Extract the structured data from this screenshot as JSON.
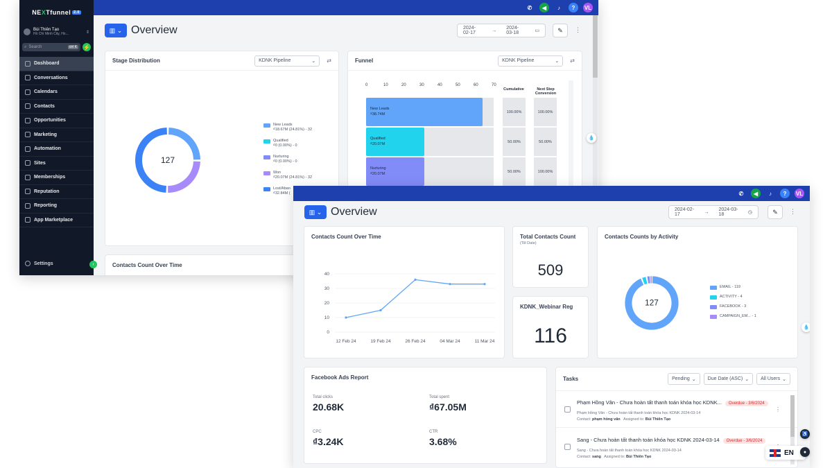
{
  "brand": {
    "name_a": "NE",
    "name_b": "X",
    "name_c": "Tfunnel",
    "badge": "2.0"
  },
  "location": {
    "name": "Bùi Thiên Tạo",
    "city": "Hồ Chí Minh City, Ho..."
  },
  "search": {
    "placeholder": "Search",
    "shortcut": "ctrl K"
  },
  "sidebar": {
    "items": [
      {
        "label": "Dashboard",
        "icon": "dashboard-icon"
      },
      {
        "label": "Conversations",
        "icon": "chat-icon"
      },
      {
        "label": "Calendars",
        "icon": "calendar-icon"
      },
      {
        "label": "Contacts",
        "icon": "contacts-icon"
      },
      {
        "label": "Opportunities",
        "icon": "opportunities-icon"
      },
      {
        "label": "Marketing",
        "icon": "megaphone-icon"
      },
      {
        "label": "Automation",
        "icon": "automation-icon"
      },
      {
        "label": "Sites",
        "icon": "sites-icon"
      },
      {
        "label": "Memberships",
        "icon": "memberships-icon"
      },
      {
        "label": "Reputation",
        "icon": "star-icon"
      },
      {
        "label": "Reporting",
        "icon": "reporting-icon"
      },
      {
        "label": "App Marketplace",
        "icon": "grid-icon"
      }
    ],
    "settings": "Settings"
  },
  "topbar": {
    "user_initials": "VL"
  },
  "page": {
    "title": "Overview"
  },
  "date_range": {
    "start": "2024-02-17",
    "end": "2024-03-18",
    "arrow": "→"
  },
  "stage_distribution": {
    "title": "Stage Distribution",
    "pipeline": "KDNK Pipeline",
    "total": "127",
    "legend": [
      {
        "name": "New Leads",
        "value": "₫18.67M (24.81%) - 32",
        "color": "#60a5fa"
      },
      {
        "name": "Qualified",
        "value": "₫0 (0.00%) - 0",
        "color": "#22d3ee"
      },
      {
        "name": "Nurturing",
        "value": "₫0 (0.00%) - 0",
        "color": "#818cf8"
      },
      {
        "name": "Won",
        "value": "₫20.07M (24.81%) - 32",
        "color": "#a78bfa"
      },
      {
        "name": "Lost/Aban",
        "value": "₫32.84M (",
        "color": "#3b82f6"
      }
    ]
  },
  "funnel": {
    "title": "Funnel",
    "pipeline": "KDNK Pipeline",
    "axis": [
      "0",
      "10",
      "20",
      "30",
      "40",
      "50",
      "60",
      "70"
    ],
    "col_cumulative": "Cumulative",
    "col_next": "Next Step Conversion",
    "stages": [
      {
        "name": "New Leads",
        "amount": "₫38.74M",
        "count": 64,
        "cumulative": "100.00%",
        "next": "100.00%",
        "color": "#60a5fa"
      },
      {
        "name": "Qualified",
        "amount": "₫20.07M",
        "count": 32,
        "cumulative": "50.00%",
        "next": "50.00%",
        "color": "#22d3ee"
      },
      {
        "name": "Nurturing",
        "amount": "₫20.07M",
        "count": 32,
        "cumulative": "50.00%",
        "next": "100.00%",
        "color": "#818cf8"
      }
    ]
  },
  "contacts_over_time": {
    "title": "Contacts Count Over Time",
    "chart_data": {
      "type": "line",
      "x": [
        "12 Feb 24",
        "19 Feb 24",
        "26 Feb 24",
        "04 Mar 24",
        "11 Mar 24"
      ],
      "values": [
        10,
        15,
        36,
        33,
        33
      ],
      "ylim": [
        0,
        40
      ],
      "yticks": [
        "0",
        "10",
        "20",
        "30",
        "40"
      ],
      "grid": true,
      "color": "#60a5fa"
    }
  },
  "total_contacts": {
    "title": "Total Contacts Count",
    "subtitle": "(Till Date)",
    "value": "509"
  },
  "webinar": {
    "title": "KDNK_Webinar Reg",
    "value": "116"
  },
  "contacts_by_activity": {
    "title": "Contacts Counts by Activity",
    "total": "127",
    "legend": [
      {
        "label": "EMAIL - 119",
        "value": 119,
        "color": "#60a5fa"
      },
      {
        "label": "ACTIVITY - 4",
        "value": 4,
        "color": "#22d3ee"
      },
      {
        "label": "FACEBOOK - 3",
        "value": 3,
        "color": "#818cf8"
      },
      {
        "label": "CAMPAIGN_EM... - 1",
        "value": 1,
        "color": "#a78bfa"
      }
    ]
  },
  "facebook_ads": {
    "title": "Facebook Ads Report",
    "stats": [
      {
        "label": "Total clicks",
        "value": "20.68K"
      },
      {
        "label": "Total spent",
        "value": "₫67.05M"
      },
      {
        "label": "CPC",
        "value": "₫3.24K"
      },
      {
        "label": "CTR",
        "value": "3.68%"
      }
    ]
  },
  "tasks": {
    "title": "Tasks",
    "filter_status": "Pending",
    "filter_sort": "Due Date (ASC)",
    "filter_users": "All Users",
    "items": [
      {
        "title": "Phạm Hồng Vân - Chưa hoàn tất thanh toán khóa học KDNK...",
        "overdue": "Overdue - 3/6/2024",
        "sub": "Phạm Hồng Vân - Chưa hoàn tất thanh toán khóa học KDNK 2024-03-14",
        "contact_label": "Contact:",
        "contact": "phạm hồng vân",
        "assigned_label": "Assigned to:",
        "assigned": "Bùi Thiên Tạo"
      },
      {
        "title": "Sang - Chưa hoàn tất thanh toán khóa học KDNK 2024-03-14",
        "overdue": "Overdue - 3/6/2024",
        "sub": "Sang - Chưa hoàn tất thanh toán khóa học KDNK 2024-03-14",
        "contact_label": "Contact:",
        "contact": "sang",
        "assigned_label": "Assigned to:",
        "assigned": "Bùi Thiên Tạo"
      }
    ]
  },
  "lost_card_title": "Contacts Count Over Time",
  "language": {
    "code": "EN"
  }
}
